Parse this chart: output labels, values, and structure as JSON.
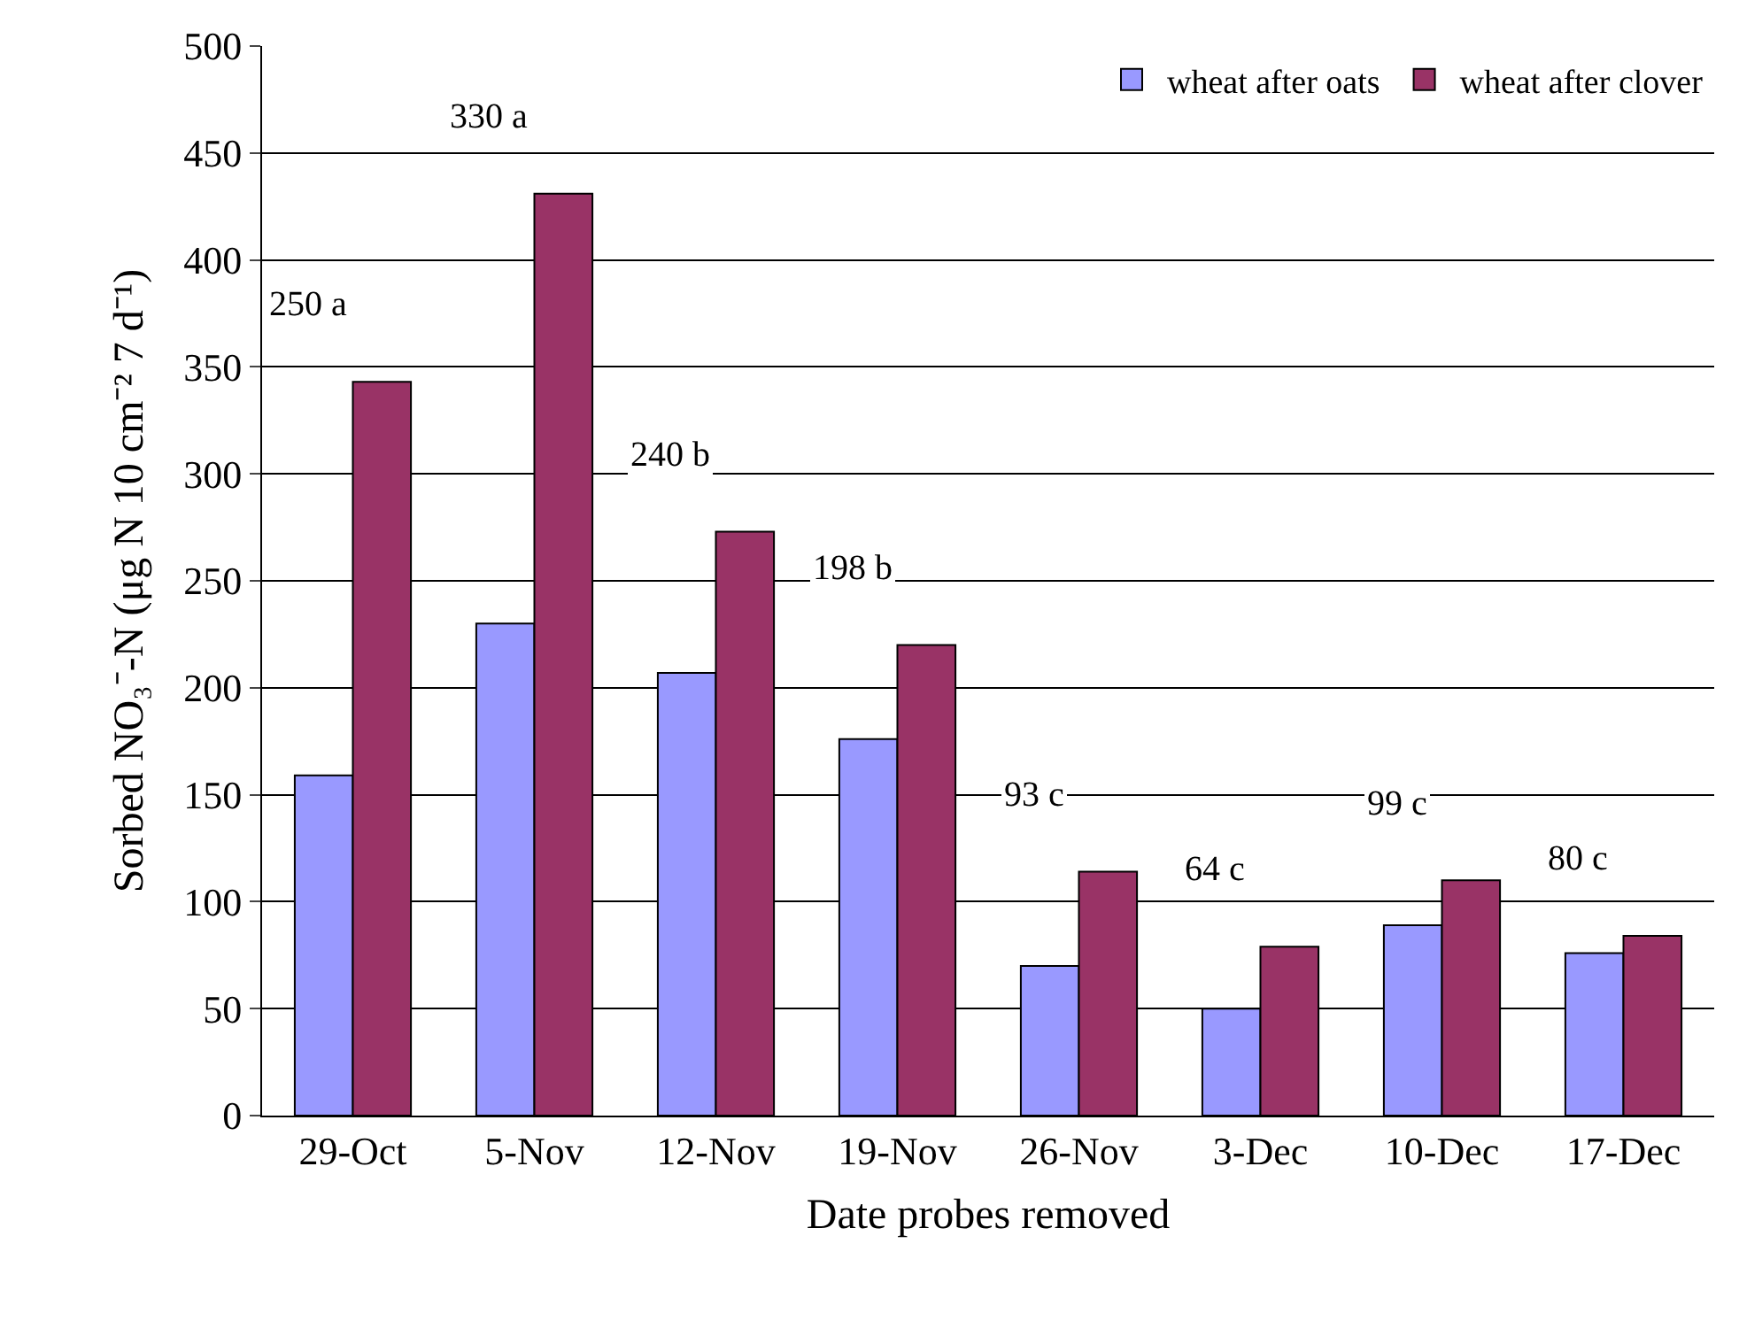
{
  "chart_data": {
    "type": "bar",
    "xlabel": "Date probes removed",
    "ylabel": "Sorbed NO₃⁻-N (μg N 10 cm⁻² 7 d⁻¹)",
    "categories": [
      "29-Oct",
      "5-Nov",
      "12-Nov",
      "19-Nov",
      "26-Nov",
      "3-Dec",
      "10-Dec",
      "17-Dec"
    ],
    "series": [
      {
        "name": "wheat after oats",
        "color": "#9999ff",
        "values": [
          159,
          230,
          207,
          176,
          70,
          50,
          89,
          76
        ]
      },
      {
        "name": "wheat after clover",
        "color": "#993366",
        "values": [
          343,
          431,
          273,
          220,
          114,
          79,
          110,
          84
        ]
      }
    ],
    "ylim": [
      0,
      500
    ],
    "yticks": [
      0,
      50,
      100,
      150,
      200,
      250,
      300,
      350,
      400,
      450,
      500
    ],
    "grid": "y",
    "legend": "top right",
    "annotations": [
      "250 a",
      "330 a",
      "240 b",
      "198 b",
      "93 c",
      "64 c",
      "99 c",
      "80 c"
    ]
  }
}
